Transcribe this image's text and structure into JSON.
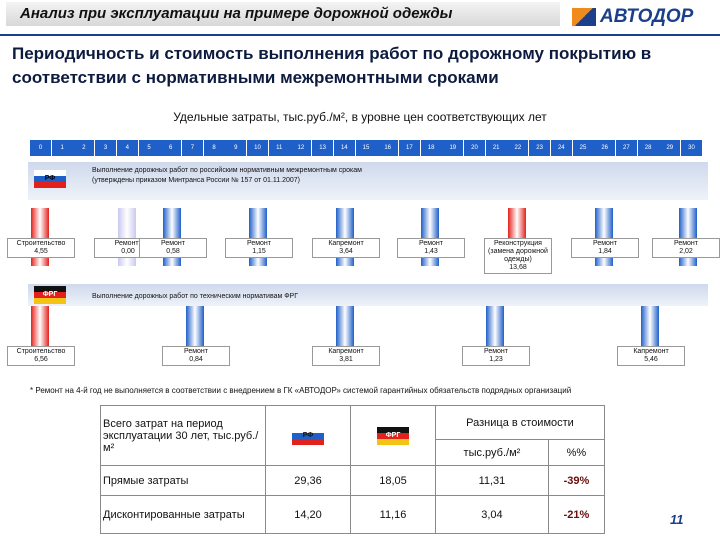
{
  "header": {
    "title": "Анализ при эксплуатации на примере дорожной одежды",
    "logo": "АВТОДОР"
  },
  "subtitle": "Периодичность и стоимость выполнения работ по дорожному покрытию в соответствии с нормативными межремонтными сроками",
  "timeline": {
    "caption": "Удельные затраты, тыс.руб./м², в уровне цен соответствующих лет",
    "years": [
      0,
      1,
      2,
      3,
      4,
      5,
      6,
      7,
      8,
      9,
      10,
      11,
      12,
      13,
      14,
      15,
      16,
      17,
      18,
      19,
      20,
      21,
      22,
      23,
      24,
      25,
      26,
      27,
      28,
      29,
      30
    ],
    "rows": [
      {
        "flag": "РФ",
        "text": "Выполнение дорожных работ по российским нормативным межремонтным срокам",
        "note": "(утверждены приказом Минтранса России № 157 от 01.11.2007)",
        "events": [
          {
            "label": "Строительство",
            "value": "4,55",
            "color": "#e3211c"
          },
          {
            "label": "Ремонт*",
            "value": "0,00",
            "color": "#c9c8f0"
          },
          {
            "label": "Ремонт",
            "value": "0,58",
            "color": "#1f5fc8"
          },
          {
            "label": "Ремонт",
            "value": "1,15",
            "color": "#1f5fc8"
          },
          {
            "label": "Капремонт",
            "value": "3,64",
            "color": "#1f5fc8"
          },
          {
            "label": "Ремонт",
            "value": "1,43",
            "color": "#1f5fc8"
          },
          {
            "label": "Реконструкция (замена дорожной одежды)",
            "value": "13,68",
            "color": "#e3211c"
          },
          {
            "label": "Ремонт",
            "value": "1,84",
            "color": "#1f5fc8"
          },
          {
            "label": "Ремонт",
            "value": "2,02",
            "color": "#1f5fc8"
          }
        ]
      },
      {
        "flag": "ФРГ",
        "text": "Выполнение дорожных работ по техническим нормативам ФРГ",
        "events": [
          {
            "label": "Строительство",
            "value": "6,56",
            "color": "#e3211c"
          },
          {
            "label": "Ремонт",
            "value": "0,84",
            "color": "#1f5fc8"
          },
          {
            "label": "Капремонт",
            "value": "3,81",
            "color": "#1f5fc8"
          },
          {
            "label": "Ремонт",
            "value": "1,23",
            "color": "#1f5fc8"
          },
          {
            "label": "Капремонт",
            "value": "5,46",
            "color": "#1f5fc8"
          }
        ]
      }
    ]
  },
  "footnote": "* Ремонт на 4-й год не выполняется в соответствии с внедрением в ГК «АВТОДОР» системой гарантийных обязательств подрядных организаций",
  "table": {
    "corner": "Всего затрат на период эксплуатации 30 лет, тыс.руб./м²",
    "flags": [
      "РФ",
      "ФРГ"
    ],
    "diff": "Разница в стоимости",
    "diff_units": [
      "тыс.руб./м²",
      "%%"
    ],
    "rows": [
      [
        "Прямые затраты",
        "29,36",
        "18,05",
        "11,31",
        "-39%"
      ],
      [
        "Дисконтированные затраты",
        "14,20",
        "11,16",
        "3,04",
        "-21%"
      ]
    ]
  },
  "page": "11"
}
